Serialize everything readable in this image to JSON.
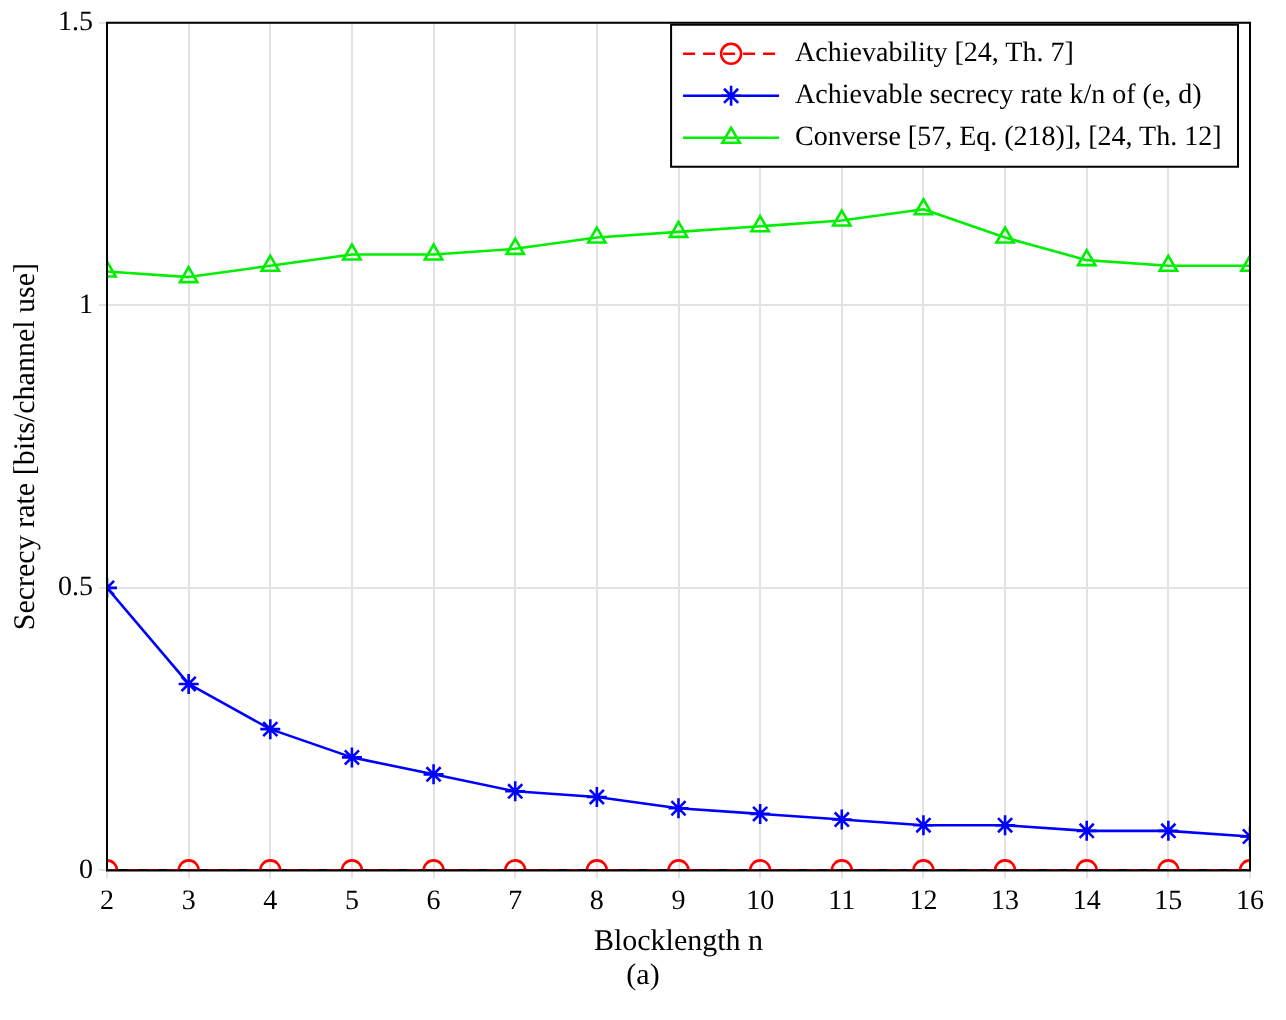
{
  "chart_data": {
    "type": "line",
    "xlabel": "Blocklength n",
    "ylabel": "Secrecy rate [bits/channel use]",
    "x": [
      2,
      3,
      4,
      5,
      6,
      7,
      8,
      9,
      10,
      11,
      12,
      13,
      14,
      15,
      16
    ],
    "series": [
      {
        "name": "Achievability [24, Th. 7]",
        "color": "#ff0000",
        "marker": "circle",
        "line_style": "dashed",
        "values": [
          0,
          0,
          0,
          0,
          0,
          0,
          0,
          0,
          0,
          0,
          0,
          0,
          0,
          0,
          0
        ]
      },
      {
        "name": "Achievable secrecy rate k/n of (e, d)",
        "color": "#0000ff",
        "marker": "cross",
        "line_style": "solid",
        "values": [
          0.5,
          0.33,
          0.25,
          0.2,
          0.17,
          0.14,
          0.13,
          0.11,
          0.1,
          0.09,
          0.08,
          0.08,
          0.07,
          0.07,
          0.06
        ]
      },
      {
        "name": "Converse [57, Eq. (218)], [24, Th. 12]",
        "color": "#00ee00",
        "marker": "triangle",
        "line_style": "solid",
        "values": [
          1.06,
          1.05,
          1.07,
          1.09,
          1.09,
          1.1,
          1.12,
          1.13,
          1.14,
          1.15,
          1.17,
          1.12,
          1.08,
          1.07,
          1.07
        ]
      }
    ],
    "xlim": [
      2,
      16
    ],
    "xticks": [
      2,
      3,
      4,
      5,
      6,
      7,
      8,
      9,
      10,
      11,
      12,
      13,
      14,
      15,
      16
    ],
    "ylim": [
      0,
      1.5
    ],
    "yticks": [
      0,
      0.5,
      1,
      1.5
    ],
    "grid": true,
    "legend": "top right",
    "annotations": [
      "(a)"
    ]
  }
}
